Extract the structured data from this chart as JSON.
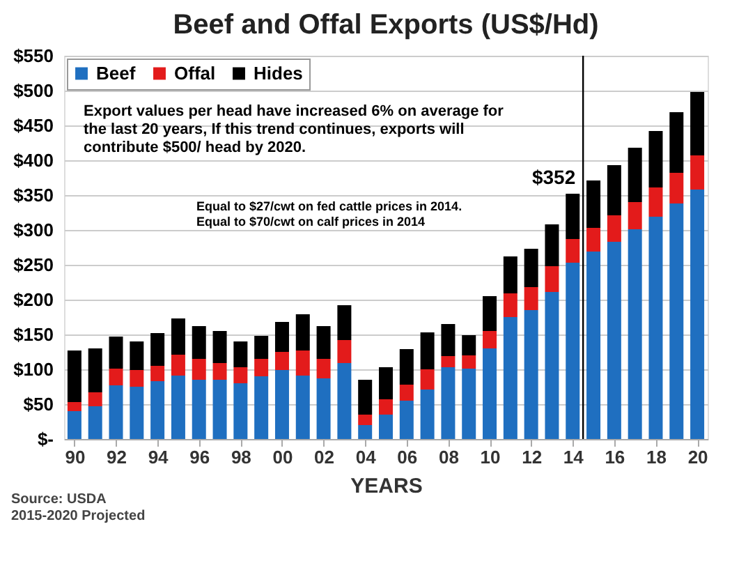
{
  "chart_data": {
    "type": "bar",
    "title": "Beef and Offal Exports (US$/Hd)",
    "xlabel": "YEARS",
    "stacked": true,
    "x": [
      1990,
      1991,
      1992,
      1993,
      1994,
      1995,
      1996,
      1997,
      1998,
      1999,
      2000,
      2001,
      2002,
      2003,
      2004,
      2005,
      2006,
      2007,
      2008,
      2009,
      2010,
      2011,
      2012,
      2013,
      2014,
      2015,
      2016,
      2017,
      2018,
      2019,
      2020
    ],
    "series": [
      {
        "name": "Beef",
        "color": "#1f6fc0",
        "values": [
          40,
          47,
          77,
          75,
          83,
          91,
          85,
          85,
          80,
          90,
          99,
          91,
          87,
          109,
          20,
          35,
          55,
          71,
          103,
          101,
          130,
          175,
          185,
          211,
          253,
          269,
          283,
          301,
          319,
          338,
          358
        ]
      },
      {
        "name": "Offal",
        "color": "#e31b1b",
        "values": [
          13,
          20,
          24,
          24,
          22,
          30,
          30,
          24,
          23,
          25,
          26,
          36,
          28,
          33,
          15,
          22,
          23,
          29,
          16,
          19,
          25,
          34,
          33,
          37,
          34,
          34,
          38,
          39,
          42,
          44,
          49
        ]
      },
      {
        "name": "Hides",
        "color": "#000000",
        "values": [
          74,
          63,
          46,
          41,
          47,
          52,
          47,
          46,
          37,
          33,
          43,
          52,
          47,
          50,
          50,
          46,
          51,
          53,
          46,
          29,
          50,
          53,
          55,
          60,
          65,
          68,
          72,
          78,
          81,
          87,
          91
        ]
      }
    ],
    "xlim": [
      1989.5,
      2020.5
    ],
    "xticks": [
      {
        "value": 1990,
        "label": "90"
      },
      {
        "value": 1992,
        "label": "92"
      },
      {
        "value": 1994,
        "label": "94"
      },
      {
        "value": 1996,
        "label": "96"
      },
      {
        "value": 1998,
        "label": "98"
      },
      {
        "value": 2000,
        "label": "00"
      },
      {
        "value": 2002,
        "label": "02"
      },
      {
        "value": 2004,
        "label": "04"
      },
      {
        "value": 2006,
        "label": "06"
      },
      {
        "value": 2008,
        "label": "08"
      },
      {
        "value": 2010,
        "label": "10"
      },
      {
        "value": 2012,
        "label": "12"
      },
      {
        "value": 2014,
        "label": "14"
      },
      {
        "value": 2016,
        "label": "16"
      },
      {
        "value": 2018,
        "label": "18"
      },
      {
        "value": 2020,
        "label": "20"
      }
    ],
    "ylim": [
      0,
      550
    ],
    "yticks": [
      {
        "value": 0,
        "label": "$-"
      },
      {
        "value": 50,
        "label": "$50"
      },
      {
        "value": 100,
        "label": "$100"
      },
      {
        "value": 150,
        "label": "$150"
      },
      {
        "value": 200,
        "label": "$200"
      },
      {
        "value": 250,
        "label": "$250"
      },
      {
        "value": 300,
        "label": "$300"
      },
      {
        "value": 350,
        "label": "$350"
      },
      {
        "value": 400,
        "label": "$400"
      },
      {
        "value": 450,
        "label": "$450"
      },
      {
        "value": 500,
        "label": "$500"
      },
      {
        "value": 550,
        "label": "$550"
      }
    ],
    "grid": "y",
    "legend": "top left",
    "ref_lines": [
      {
        "axis": "x",
        "value": 2014.5,
        "color": "#000000"
      }
    ],
    "annotations": [
      {
        "text": "$352",
        "x": 2014,
        "y": 352
      },
      "Export values per head have increased 6% on average for\nthe last 20 years, If this trend continues, exports will\ncontribute $500/ head by 2020.",
      "Equal to $27/cwt on fed cattle prices  in 2014.\nEqual to $70/cwt on calf prices  in 2014",
      "Source: USDA\n2015-2020 Projected"
    ]
  }
}
